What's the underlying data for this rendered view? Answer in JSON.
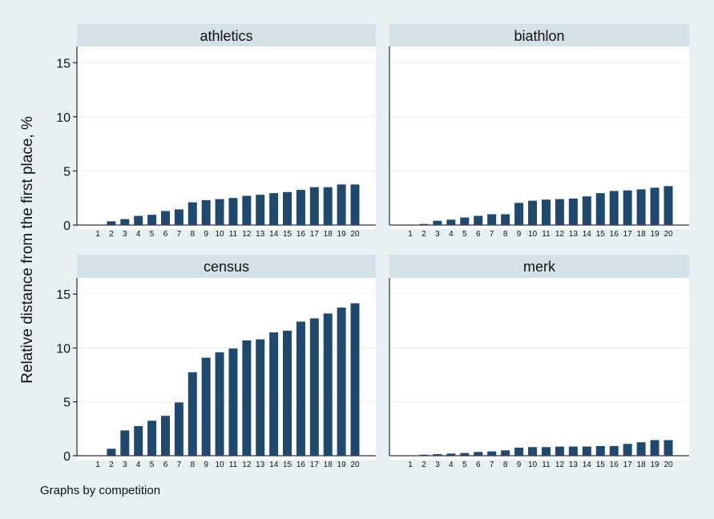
{
  "chart_data": {
    "type": "bar",
    "layout": "facet-2x2",
    "ylabel": "Relative distance from the first place, %",
    "note": "Graphs by competition",
    "ylim": [
      0,
      16.5
    ],
    "yticks": [
      0,
      5,
      10,
      15
    ],
    "categories": [
      "1",
      "2",
      "3",
      "4",
      "5",
      "6",
      "7",
      "8",
      "9",
      "10",
      "11",
      "12",
      "13",
      "14",
      "15",
      "16",
      "17",
      "18",
      "19",
      "20"
    ],
    "bar_color": "#1f4a6e",
    "grid": true,
    "panels": [
      {
        "name": "athletics",
        "values": [
          0,
          0.35,
          0.55,
          0.85,
          0.95,
          1.3,
          1.45,
          2.1,
          2.3,
          2.4,
          2.5,
          2.7,
          2.8,
          2.95,
          3.05,
          3.25,
          3.5,
          3.5,
          3.75,
          3.75
        ]
      },
      {
        "name": "biathlon",
        "values": [
          0,
          0.1,
          0.4,
          0.5,
          0.7,
          0.85,
          1.0,
          1.0,
          2.05,
          2.25,
          2.35,
          2.4,
          2.45,
          2.65,
          2.95,
          3.15,
          3.2,
          3.3,
          3.45,
          3.6
        ]
      },
      {
        "name": "census",
        "values": [
          0,
          0.65,
          2.35,
          2.75,
          3.25,
          3.7,
          4.95,
          7.75,
          9.1,
          9.6,
          9.95,
          10.7,
          10.8,
          11.45,
          11.6,
          12.45,
          12.75,
          13.2,
          13.75,
          14.15
        ]
      },
      {
        "name": "merk",
        "values": [
          0,
          0.1,
          0.15,
          0.2,
          0.25,
          0.35,
          0.4,
          0.5,
          0.75,
          0.8,
          0.8,
          0.85,
          0.85,
          0.85,
          0.9,
          0.9,
          1.1,
          1.25,
          1.45,
          1.45
        ]
      }
    ]
  }
}
